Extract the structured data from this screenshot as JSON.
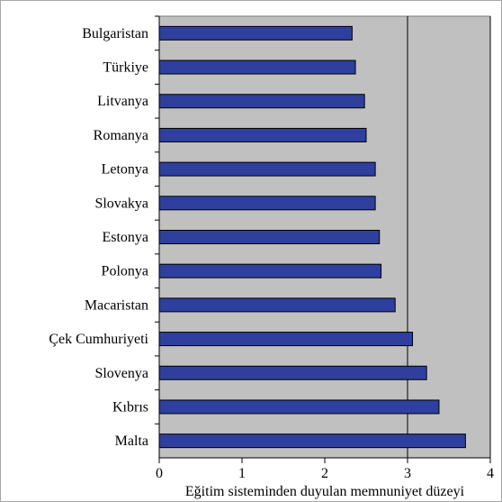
{
  "chart_data": {
    "type": "bar",
    "orientation": "horizontal",
    "categories": [
      "Bulgaristan",
      "Türkiye",
      "Litvanya",
      "Romanya",
      "Letonya",
      "Slovakya",
      "Estonya",
      "Polonya",
      "Macaristan",
      "Çek Cumhuriyeti",
      "Slovenya",
      "Kıbrıs",
      "Malta"
    ],
    "values": [
      2.33,
      2.37,
      2.48,
      2.5,
      2.61,
      2.61,
      2.66,
      2.68,
      2.85,
      3.06,
      3.23,
      3.38,
      3.7
    ],
    "title": "",
    "xlabel": "Eğitim sisteminden duyulan memnuniyet düzeyi",
    "ylabel": "",
    "xlim": [
      0,
      4
    ],
    "x_ticks": [
      "0",
      "1",
      "2",
      "3",
      "4"
    ],
    "grid": "vertical gridlines at 3 and 4",
    "legend": "none",
    "colors": {
      "bar_fill": "#2e3f9e",
      "bar_edge": "#000000",
      "plot_background": "#c0c0c0",
      "gridline": "#000000"
    }
  }
}
